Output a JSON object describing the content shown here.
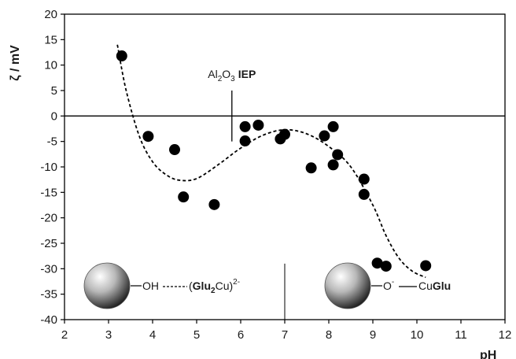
{
  "chart_data": {
    "type": "scatter",
    "title": "",
    "xlabel": "pH",
    "ylabel": "ζ / mV",
    "xlim": [
      2,
      12
    ],
    "ylim": [
      -40,
      20
    ],
    "xticks": [
      "2",
      "3",
      "4",
      "5",
      "6",
      "7",
      "8",
      "9",
      "10",
      "11",
      "12"
    ],
    "yticks": [
      "20",
      "15",
      "10",
      "5",
      "0",
      "-5",
      "-10",
      "-15",
      "-20",
      "-25",
      "-30",
      "-35",
      "-40"
    ],
    "grid": false,
    "points": [
      {
        "x": 3.3,
        "y": 11.8
      },
      {
        "x": 3.9,
        "y": -4.0
      },
      {
        "x": 4.5,
        "y": -6.6
      },
      {
        "x": 4.7,
        "y": -15.9
      },
      {
        "x": 5.4,
        "y": -17.4
      },
      {
        "x": 6.1,
        "y": -2.1
      },
      {
        "x": 6.1,
        "y": -4.9
      },
      {
        "x": 6.4,
        "y": -1.8
      },
      {
        "x": 6.9,
        "y": -4.5
      },
      {
        "x": 7.0,
        "y": -3.6
      },
      {
        "x": 7.6,
        "y": -10.2
      },
      {
        "x": 7.9,
        "y": -3.9
      },
      {
        "x": 8.1,
        "y": -9.6
      },
      {
        "x": 8.1,
        "y": -2.1
      },
      {
        "x": 8.2,
        "y": -7.6
      },
      {
        "x": 8.8,
        "y": -15.4
      },
      {
        "x": 8.8,
        "y": -12.4
      },
      {
        "x": 9.1,
        "y": -28.9
      },
      {
        "x": 9.3,
        "y": -29.5
      },
      {
        "x": 10.2,
        "y": -29.4
      }
    ],
    "trend_line": {
      "style": "dashed",
      "points": [
        [
          3.2,
          14
        ],
        [
          3.4,
          5
        ],
        [
          3.7,
          -4
        ],
        [
          4.0,
          -9
        ],
        [
          4.3,
          -11.5
        ],
        [
          4.6,
          -12.6
        ],
        [
          5.0,
          -12.3
        ],
        [
          5.5,
          -9.5
        ],
        [
          6.0,
          -6.3
        ],
        [
          6.5,
          -3.8
        ],
        [
          7.0,
          -2.7
        ],
        [
          7.5,
          -3.5
        ],
        [
          8.0,
          -6.0
        ],
        [
          8.5,
          -10.0
        ],
        [
          9.0,
          -17.5
        ],
        [
          9.3,
          -23.5
        ],
        [
          9.6,
          -28.0
        ],
        [
          9.9,
          -30.5
        ],
        [
          10.2,
          -31.7
        ]
      ]
    },
    "annotations": {
      "iep": {
        "x": 5.8,
        "al": "Al",
        "sub2": "2",
        "o": "O",
        "sub3": "3",
        "iep_label": "IEP"
      },
      "divider_x": 7.0,
      "left_species": {
        "oh": "OH",
        "paren_open": "(",
        "glu": "Glu",
        "sub2": "2",
        "cu": "Cu)",
        "charge": "2-"
      },
      "right_species": {
        "o": "O",
        "charge": "-",
        "cu": "Cu",
        "glu": "Glu"
      }
    }
  }
}
